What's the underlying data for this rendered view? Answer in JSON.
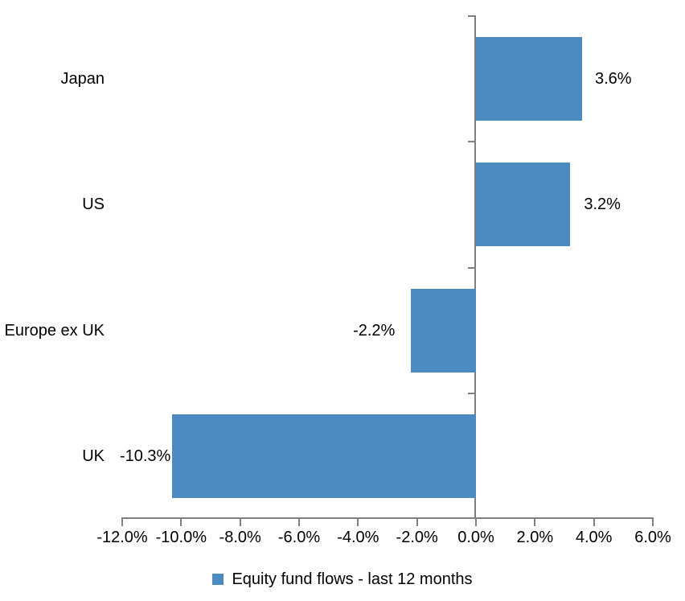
{
  "chart_data": {
    "type": "bar",
    "orientation": "horizontal",
    "title": "",
    "categories": [
      "Japan",
      "US",
      "Europe ex UK",
      "UK"
    ],
    "values": [
      3.6,
      3.2,
      -2.2,
      -10.3
    ],
    "value_labels": [
      "3.6%",
      "3.2%",
      "-2.2%",
      "-10.3%"
    ],
    "series_name": "Equity fund flows - last 12 months",
    "xlim": [
      -12,
      6
    ],
    "x_tick_step": 2,
    "x_tick_labels": [
      "-12.0%",
      "-10.0%",
      "-8.0%",
      "-6.0%",
      "-4.0%",
      "-2.0%",
      "0.0%",
      "2.0%",
      "4.0%",
      "6.0%"
    ],
    "grid": false,
    "legend_position": "bottom-center",
    "bar_color": "#4C8BC2",
    "axis_color": "#808080",
    "text_color": "#000000",
    "background_color": "#ffffff"
  },
  "legend": {
    "swatch_icon": "legend-color-square",
    "label": "Equity fund flows - last 12 months"
  }
}
